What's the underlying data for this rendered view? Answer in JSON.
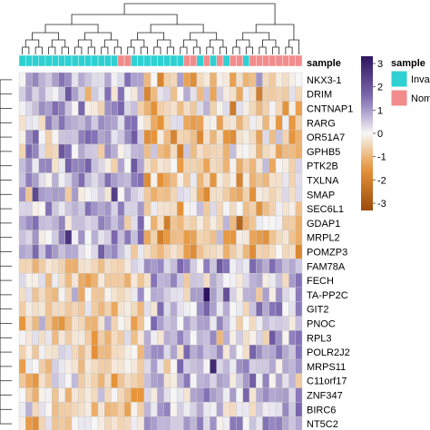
{
  "chart_data": {
    "type": "heatmap",
    "title": "",
    "xlabel": "",
    "ylabel": "",
    "annotation_title": "sample",
    "annotation_legend": {
      "title": "sample",
      "groups": [
        {
          "label": "Inva",
          "color": "#2ED0D2"
        },
        {
          "label": "Nom",
          "color": "#F28C8C"
        }
      ]
    },
    "color_scale": {
      "range": [
        -3,
        3
      ],
      "ticks": [
        "3",
        "2",
        "1",
        "0",
        "-1",
        "-2",
        "-3"
      ],
      "low_color": "#9B4A0A",
      "mid_color": "#F7F7F7",
      "high_color": "#2E1460"
    },
    "column_annotation": [
      "I",
      "I",
      "I",
      "I",
      "I",
      "I",
      "I",
      "I",
      "I",
      "I",
      "I",
      "I",
      "I",
      "I",
      "I",
      "N",
      "N",
      "I",
      "I",
      "I",
      "I",
      "I",
      "I",
      "I",
      "I",
      "N",
      "N",
      "I",
      "N",
      "I",
      "N",
      "I",
      "N",
      "N",
      "I",
      "N",
      "N",
      "N",
      "N",
      "N",
      "N",
      "N",
      "N"
    ],
    "rows": [
      "NKX3-1",
      "DRIM",
      "CNTNAP1",
      "RARG",
      "OR51A7",
      "GPHB5",
      "PTK2B",
      "TXLNA",
      "SMAP",
      "SEC6L1",
      "GDAP1",
      "MRPL2",
      "POMZP3",
      "FAM78A",
      "FECH",
      "TA-PP2C",
      "GIT2",
      "PNOC",
      "RPL3",
      "POLR2J2",
      "MRPS11",
      "C11orf17",
      "ZNF347",
      "BIRC6",
      "NT5C2"
    ]
  }
}
